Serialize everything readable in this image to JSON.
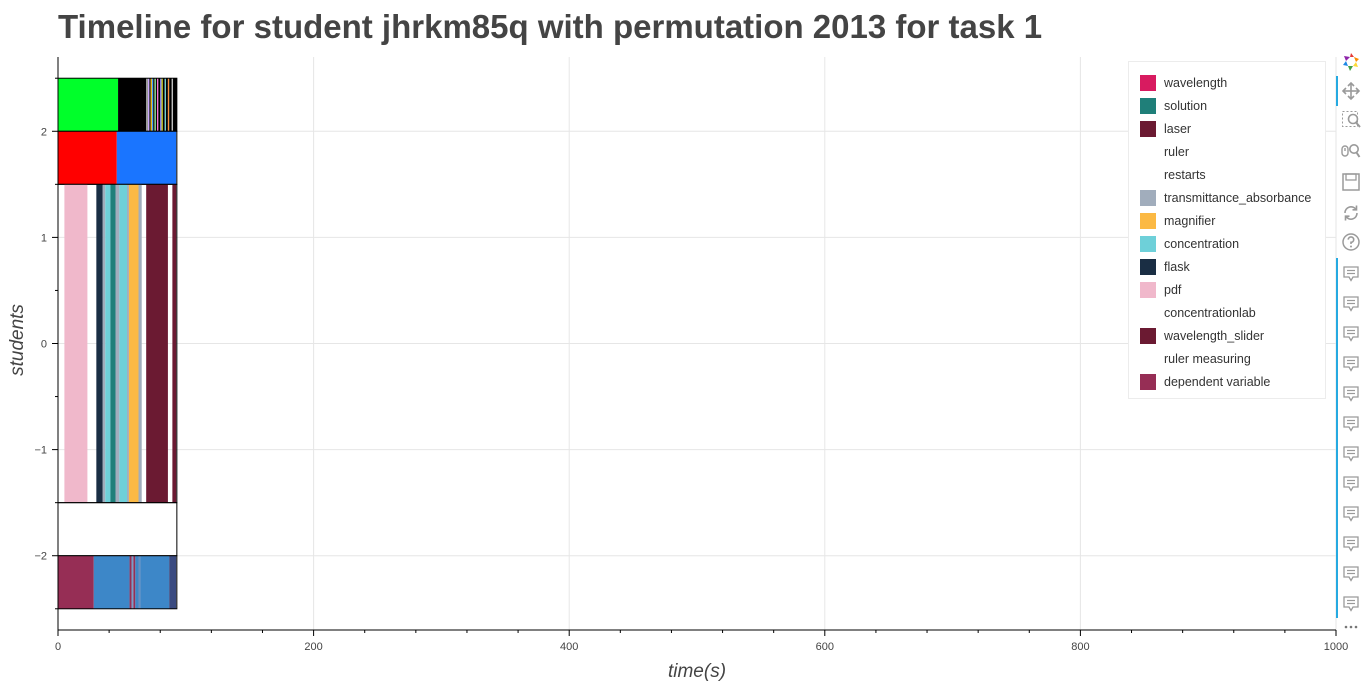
{
  "chart_data": {
    "type": "timeline",
    "title": "Timeline for student jhrkm85q with permutation 2013 for task 1",
    "xlabel": "time(s)",
    "ylabel": "students",
    "xlim": [
      0,
      1000
    ],
    "ylim": [
      -2.7,
      2.7
    ],
    "x_ticks": [
      0,
      200,
      400,
      600,
      800,
      1000
    ],
    "y_ticks": [
      -2,
      -1,
      0,
      1,
      2
    ],
    "y_tick_labels": [
      "−2",
      "−1",
      "0",
      "1",
      "2"
    ],
    "grid": true,
    "legend_position": "top-right",
    "legend": [
      {
        "label": "wavelength",
        "color": "#d81b60"
      },
      {
        "label": "solution",
        "color": "#1f7f79"
      },
      {
        "label": "laser",
        "color": "#6b1a32"
      },
      {
        "label": "ruler",
        "color": "#ffffff"
      },
      {
        "label": "restarts",
        "color": "#ffffff"
      },
      {
        "label": "transmittance_absorbance",
        "color": "#a1adbc"
      },
      {
        "label": "magnifier",
        "color": "#fbb944"
      },
      {
        "label": "concentration",
        "color": "#6ed0d9"
      },
      {
        "label": "flask",
        "color": "#1a2e44"
      },
      {
        "label": "pdf",
        "color": "#f0b8cb"
      },
      {
        "label": "concentrationlab",
        "color": "#ffffff"
      },
      {
        "label": "wavelength_slider",
        "color": "#6b1a32"
      },
      {
        "label": "ruler measuring",
        "color": "#ffffff"
      },
      {
        "label": "dependent variable",
        "color": "#962e55"
      }
    ],
    "rows": [
      {
        "y_range": [
          2,
          2.5
        ],
        "segments": [
          {
            "start": 0,
            "end": 47,
            "color": "#00ff2a"
          },
          {
            "start": 47,
            "end": 69,
            "color": "#000000"
          },
          {
            "start": 69,
            "end": 70.5,
            "color": "#9a9a9a"
          },
          {
            "start": 70.5,
            "end": 71.5,
            "color": "#c7a2ff"
          },
          {
            "start": 71.5,
            "end": 72.5,
            "color": "#000000"
          },
          {
            "start": 72.5,
            "end": 73.5,
            "color": "#f0b000"
          },
          {
            "start": 73.5,
            "end": 74.5,
            "color": "#4aa0ff"
          },
          {
            "start": 74.5,
            "end": 75.5,
            "color": "#000000"
          },
          {
            "start": 75.5,
            "end": 76.5,
            "color": "#a0ffa0"
          },
          {
            "start": 76.5,
            "end": 77.5,
            "color": "#000000"
          },
          {
            "start": 77.5,
            "end": 78.5,
            "color": "#ff6ad5"
          },
          {
            "start": 78.5,
            "end": 80,
            "color": "#000000"
          },
          {
            "start": 80,
            "end": 81,
            "color": "#8080ff"
          },
          {
            "start": 81,
            "end": 82,
            "color": "#d0d000"
          },
          {
            "start": 82,
            "end": 83.5,
            "color": "#000000"
          },
          {
            "start": 83.5,
            "end": 84.5,
            "color": "#6ed0d9"
          },
          {
            "start": 84.5,
            "end": 86,
            "color": "#000000"
          },
          {
            "start": 86,
            "end": 87,
            "color": "#ff9040"
          },
          {
            "start": 87,
            "end": 89,
            "color": "#000000"
          },
          {
            "start": 89,
            "end": 90,
            "color": "#c0c0c0"
          },
          {
            "start": 90,
            "end": 93,
            "color": "#000000"
          }
        ]
      },
      {
        "y_range": [
          1.5,
          2
        ],
        "segments": [
          {
            "start": 0,
            "end": 46,
            "color": "#ff0000"
          },
          {
            "start": 46,
            "end": 92.5,
            "color": "#1a75ff"
          }
        ]
      },
      {
        "y_range": [
          -1.5,
          1.5
        ],
        "segments": [
          {
            "start": 5,
            "end": 23,
            "color": "#f0b8cb"
          },
          {
            "start": 30,
            "end": 35,
            "color": "#1a2e44"
          },
          {
            "start": 35,
            "end": 37,
            "color": "#a1adbc"
          },
          {
            "start": 37,
            "end": 41,
            "color": "#6ed0d9"
          },
          {
            "start": 41,
            "end": 45,
            "color": "#1f7f79"
          },
          {
            "start": 45,
            "end": 48,
            "color": "#a1adbc"
          },
          {
            "start": 48,
            "end": 54,
            "color": "#6ed0d9"
          },
          {
            "start": 54,
            "end": 55.5,
            "color": "#a1adbc"
          },
          {
            "start": 55.5,
            "end": 63,
            "color": "#fbb944"
          },
          {
            "start": 63,
            "end": 65.5,
            "color": "#a1adbc"
          },
          {
            "start": 69,
            "end": 86,
            "color": "#6b1a32"
          },
          {
            "start": 89.5,
            "end": 92.5,
            "color": "#6b1a32"
          }
        ]
      },
      {
        "y_range": [
          -2,
          -1.5
        ],
        "segments": []
      },
      {
        "y_range": [
          -2.5,
          -2
        ],
        "segments": [
          {
            "start": 0,
            "end": 28,
            "color": "#962e55"
          },
          {
            "start": 28,
            "end": 56,
            "color": "#3d87c8"
          },
          {
            "start": 56,
            "end": 57.5,
            "color": "#962e55"
          },
          {
            "start": 57.5,
            "end": 59,
            "color": "#7a9cc8"
          },
          {
            "start": 59,
            "end": 60.5,
            "color": "#962e55"
          },
          {
            "start": 60.5,
            "end": 63,
            "color": "#3d87c8"
          },
          {
            "start": 63,
            "end": 64.5,
            "color": "#6b8fc0"
          },
          {
            "start": 64.5,
            "end": 87,
            "color": "#3d87c8"
          },
          {
            "start": 87,
            "end": 92.5,
            "color": "#3a4a80"
          }
        ]
      }
    ]
  },
  "legend_color_items": [
    0,
    1,
    2,
    5,
    6,
    7,
    8,
    9,
    11,
    13
  ],
  "toolbar": {
    "tools": [
      {
        "icon": "bokeh-logo-icon"
      },
      {
        "icon": "pan-icon"
      },
      {
        "icon": "box-zoom-icon"
      },
      {
        "icon": "wheel-zoom-icon"
      },
      {
        "icon": "save-icon"
      },
      {
        "icon": "reset-icon"
      },
      {
        "icon": "help-icon"
      },
      {
        "icon": "hover-icon"
      },
      {
        "icon": "more-icon"
      }
    ],
    "accent": "#26aae1"
  }
}
